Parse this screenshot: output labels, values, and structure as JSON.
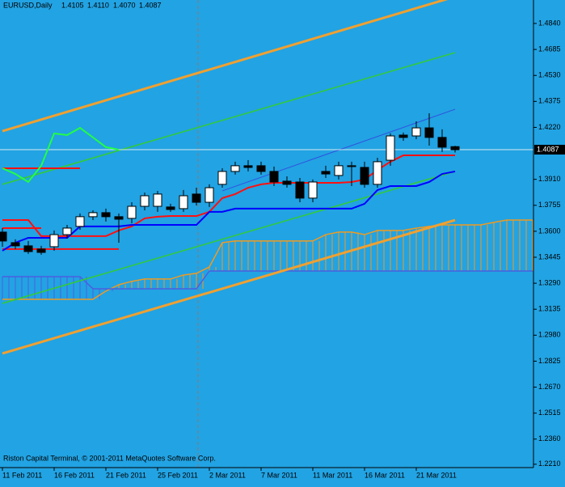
{
  "chart_data": {
    "type": "candlestick",
    "header": {
      "symbol": "EURUSD,Daily",
      "ohlc": [
        "1.4105",
        "1.4110",
        "1.4070",
        "1.4087"
      ]
    },
    "copyright": "Riston Capital Terminal, © 2001-2011 MetaQuotes Software Corp.",
    "background": "#22a3e3",
    "categories": [
      "11 Feb 2011",
      null,
      null,
      null,
      "16 Feb 2011",
      null,
      null,
      null,
      "21 Feb 2011",
      null,
      null,
      null,
      "25 Feb 2011",
      null,
      null,
      null,
      "2 Mar 2011",
      null,
      null,
      null,
      "7 Mar 2011",
      null,
      null,
      null,
      "11 Mar 2011",
      null,
      null,
      null,
      "16 Mar 2011",
      null,
      null,
      null,
      "21 Mar 2011",
      null,
      null,
      null,
      null,
      null,
      null,
      null,
      null,
      null
    ],
    "open": [
      1.3595,
      1.3532,
      1.3513,
      1.3494,
      1.3508,
      1.358,
      1.3629,
      1.3687,
      1.3711,
      1.3687,
      1.3677,
      1.3749,
      1.3749,
      1.3745,
      1.3735,
      1.3822,
      1.3773,
      1.388,
      1.3957,
      1.3991,
      1.3991,
      1.3957,
      1.3899,
      1.3894,
      1.3798,
      1.3957,
      1.3933,
      1.3986,
      1.3981,
      1.388,
      1.4024,
      1.4174,
      1.4169,
      1.4217,
      1.416,
      1.4105,
      null,
      null,
      null,
      null,
      null,
      null
    ],
    "high": [
      1.3619,
      1.3552,
      1.3542,
      1.3513,
      1.3605,
      1.3638,
      1.3706,
      1.3725,
      1.3735,
      1.3706,
      1.3773,
      1.3831,
      1.3841,
      1.3764,
      1.3846,
      1.386,
      1.388,
      1.3976,
      1.4015,
      1.4024,
      1.4015,
      1.3986,
      1.3928,
      1.3918,
      1.3909,
      1.3991,
      1.4015,
      1.4015,
      1.4015,
      1.4039,
      1.4184,
      1.4189,
      1.4256,
      1.4304,
      1.4208,
      1.411,
      null,
      null,
      null,
      null,
      null,
      null
    ],
    "low": [
      1.3508,
      1.3494,
      1.3465,
      1.346,
      1.3484,
      1.3556,
      1.3609,
      1.3667,
      1.3658,
      1.3532,
      1.3648,
      1.3725,
      1.3716,
      1.3716,
      1.3716,
      1.3754,
      1.3745,
      1.386,
      1.3938,
      1.3957,
      1.3938,
      1.387,
      1.386,
      1.3773,
      1.3773,
      1.3918,
      1.3909,
      1.387,
      1.386,
      1.386,
      1.3991,
      1.414,
      1.415,
      1.4111,
      1.4073,
      1.407,
      null,
      null,
      null,
      null,
      null,
      null
    ],
    "close": [
      1.3542,
      1.3513,
      1.3479,
      1.3474,
      1.358,
      1.3619,
      1.3687,
      1.3711,
      1.3687,
      1.3672,
      1.3749,
      1.3812,
      1.3822,
      1.373,
      1.3812,
      1.3773,
      1.386,
      1.3957,
      1.3991,
      1.3981,
      1.3957,
      1.3894,
      1.388,
      1.3798,
      1.3894,
      1.3942,
      1.3991,
      1.3991,
      1.388,
      1.4015,
      1.4169,
      1.416,
      1.4217,
      1.416,
      1.4102,
      1.4087,
      null,
      null,
      null,
      null,
      null,
      null
    ],
    "current_price": {
      "value": 1.4087,
      "label": "1.4087"
    },
    "series": [
      {
        "color": "#ff1010",
        "width": 2,
        "values": [
          1.3667,
          1.3667,
          1.3667,
          1.3571,
          1.3571,
          1.3571,
          1.3571,
          1.3571,
          1.3571,
          1.3605,
          1.3629,
          1.3677,
          1.3687,
          1.3691,
          1.3691,
          1.3691,
          1.3716,
          1.3798,
          1.3822,
          1.386,
          1.388,
          1.3889,
          1.3889,
          1.3889,
          1.3889,
          1.3889,
          1.3889,
          1.3894,
          1.3909,
          1.3966,
          1.4015,
          1.4053,
          1.4053,
          1.4053,
          1.4053,
          1.4053,
          null,
          null,
          null,
          null,
          null,
          null
        ]
      },
      {
        "color": "#0000ff",
        "width": 2,
        "values": [
          1.3484,
          1.3532,
          1.3561,
          1.3561,
          1.3561,
          1.3561,
          1.3629,
          1.3629,
          1.3629,
          1.3629,
          1.3638,
          1.3638,
          1.3638,
          1.3638,
          1.3638,
          1.3638,
          1.3716,
          1.3716,
          1.3735,
          1.3735,
          1.3735,
          1.3735,
          1.3735,
          1.3735,
          1.3735,
          1.3735,
          1.3735,
          1.3735,
          1.3764,
          1.3846,
          1.387,
          1.387,
          1.387,
          1.3894,
          1.3942,
          1.3957,
          null,
          null,
          null,
          null,
          null,
          null
        ]
      },
      {
        "color": "#22ff44",
        "width": 2,
        "values": [
          1.3976,
          1.3942,
          1.3894,
          1.3991,
          1.4184,
          1.4174,
          1.4217,
          1.416,
          1.4102,
          1.4087,
          null,
          null,
          null,
          null,
          null,
          null,
          null,
          null,
          null,
          null,
          null,
          null,
          null,
          null,
          null,
          null,
          null,
          null,
          null,
          null,
          null,
          null,
          null,
          null,
          null,
          null,
          null,
          null,
          null,
          null,
          null,
          null
        ]
      }
    ],
    "cloud": {
      "color_up": "#f09a20",
      "color_down": "#4a60e0",
      "span_a": [
        1.3194,
        1.3194,
        1.3194,
        1.3194,
        1.3194,
        1.3194,
        1.3194,
        1.3194,
        1.3243,
        1.3281,
        1.3301,
        1.3315,
        1.3315,
        1.3315,
        1.3339,
        1.3349,
        1.3387,
        1.3532,
        1.3542,
        1.3542,
        1.3542,
        1.3542,
        1.3542,
        1.3542,
        1.3542,
        1.358,
        1.3595,
        1.3595,
        1.358,
        1.3605,
        1.3605,
        1.3605,
        1.3619,
        1.3629,
        1.3638,
        1.3638,
        1.3638,
        1.3638,
        1.3653,
        1.3667,
        1.3667,
        1.3667
      ],
      "span_b": [
        1.3329,
        1.3329,
        1.3329,
        1.3329,
        1.3329,
        1.3329,
        1.3329,
        1.3257,
        1.3257,
        1.3257,
        1.3257,
        1.3257,
        1.3257,
        1.3257,
        1.3257,
        1.3257,
        1.3363,
        1.3363,
        1.3363,
        1.3363,
        1.3363,
        1.3363,
        1.3363,
        1.3363,
        1.3363,
        1.3363,
        1.3363,
        1.3363,
        1.3363,
        1.3363,
        1.3363,
        1.3363,
        1.3363,
        1.3363,
        1.3363,
        1.3363,
        1.3363,
        1.3363,
        1.3363,
        1.3363,
        1.3363,
        1.3363
      ]
    },
    "trend_lines": [
      {
        "color": "#f0a030",
        "width": 3,
        "x": [
          0,
          35
        ],
        "values": [
          1.4198,
          1.5
        ]
      },
      {
        "color": "#f0a030",
        "width": 3,
        "x": [
          0,
          35
        ],
        "values": [
          1.2871,
          1.3667
        ]
      },
      {
        "color": "#33cc33",
        "width": 1.5,
        "x": [
          0,
          35
        ],
        "values": [
          1.388,
          1.4666
        ]
      },
      {
        "color": "#33cc33",
        "width": 1.5,
        "x": [
          0,
          35
        ],
        "values": [
          1.317,
          1.3957
        ]
      },
      {
        "color": "#3050e0",
        "width": 1,
        "x": [
          17,
          35
        ],
        "values": [
          1.3841,
          1.4328
        ]
      },
      {
        "color": "#ff1010",
        "width": 2,
        "x": [
          0,
          6
        ],
        "values": [
          1.3976,
          1.3976
        ]
      },
      {
        "color": "#ff1010",
        "width": 2,
        "x": [
          0,
          3
        ],
        "values": [
          1.3619,
          1.3619
        ]
      },
      {
        "color": "#ff1010",
        "width": 2,
        "x": [
          0,
          9
        ],
        "values": [
          1.3494,
          1.3494
        ]
      }
    ],
    "ylim": [
      1.219,
      1.498
    ],
    "yticks": [
      {
        "value": 1.484,
        "label": "1.4840"
      },
      {
        "value": 1.4685,
        "label": "1.4685"
      },
      {
        "value": 1.453,
        "label": "1.4530"
      },
      {
        "value": 1.4375,
        "label": "1.4375"
      },
      {
        "value": 1.422,
        "label": "1.4220"
      },
      {
        "value": 1.391,
        "label": "1.3910"
      },
      {
        "value": 1.3755,
        "label": "1.3755"
      },
      {
        "value": 1.36,
        "label": "1.3600"
      },
      {
        "value": 1.3445,
        "label": "1.3445"
      },
      {
        "value": 1.329,
        "label": "1.3290"
      },
      {
        "value": 1.3135,
        "label": "1.3135"
      },
      {
        "value": 1.298,
        "label": "1.2980"
      },
      {
        "value": 1.2825,
        "label": "1.2825"
      },
      {
        "value": 1.267,
        "label": "1.2670"
      },
      {
        "value": 1.2515,
        "label": "1.2515"
      },
      {
        "value": 1.236,
        "label": "1.2360"
      },
      {
        "value": 1.221,
        "label": "1.2210"
      }
    ]
  }
}
